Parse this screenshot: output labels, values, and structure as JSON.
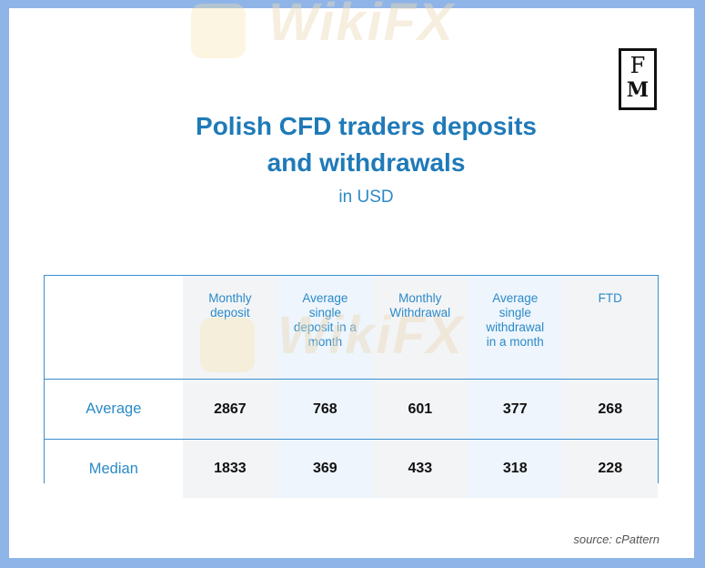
{
  "brand": {
    "logo_top": "F",
    "logo_bottom": "M"
  },
  "watermark": {
    "text": "WikiFX"
  },
  "source_note": "source: cPattern",
  "chart_data": {
    "type": "table",
    "title": "Polish CFD traders deposits and withdrawals",
    "title_line1": "Polish CFD traders deposits",
    "title_line2": "and withdrawals",
    "subtitle": "in USD",
    "columns": [
      {
        "lines": [
          "Monthly",
          "deposit"
        ]
      },
      {
        "lines": [
          "Average",
          "single",
          "deposit in a",
          "month"
        ]
      },
      {
        "lines": [
          "Monthly",
          "Withdrawal"
        ]
      },
      {
        "lines": [
          "Average",
          "single",
          "withdrawal",
          "in a month"
        ]
      },
      {
        "lines": [
          "FTD"
        ]
      }
    ],
    "rows": [
      {
        "label": "Average",
        "values": [
          2867,
          768,
          601,
          377,
          268
        ]
      },
      {
        "label": "Median",
        "values": [
          1833,
          369,
          433,
          318,
          228
        ]
      }
    ],
    "colors": {
      "title": "#1f7ab8",
      "header_text": "#2b8ac9",
      "border": "#3a8fd0",
      "shade_gray": "#f3f4f6",
      "shade_blue": "#eef5fc",
      "frame": "#8fb4e8"
    }
  }
}
